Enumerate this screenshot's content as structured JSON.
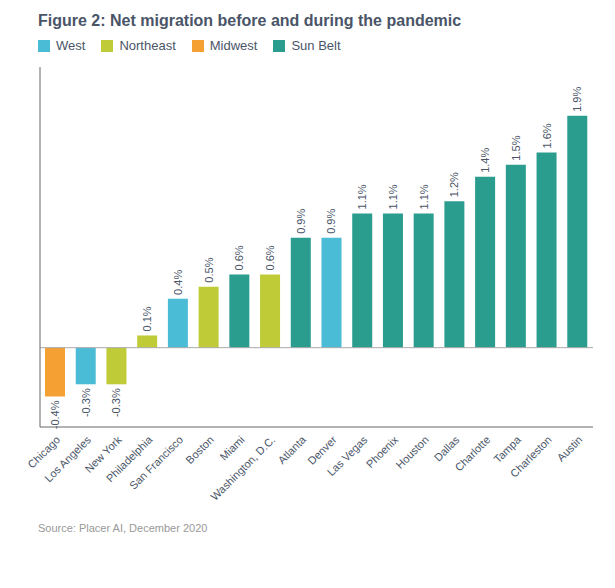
{
  "chart_data": {
    "type": "bar",
    "title": "Figure 2: Net migration before and during the pandemic",
    "categories": [
      "Chicago",
      "Los Angeles",
      "New York",
      "Philadelphia",
      "San Francisco",
      "Boston",
      "Miami",
      "Washington, D.C.",
      "Atlanta",
      "Denver",
      "Las Vegas",
      "Phoenix",
      "Houston",
      "Dallas",
      "Charlotte",
      "Tampa",
      "Charleston",
      "Austin"
    ],
    "series": [
      {
        "name": "West",
        "color": "#4BBCD6",
        "values": [
          null,
          -0.3,
          null,
          null,
          0.4,
          null,
          null,
          null,
          null,
          0.9,
          null,
          null,
          null,
          null,
          null,
          null,
          null,
          null
        ],
        "value_labels": [
          null,
          "-0.3%",
          null,
          null,
          "0.4%",
          null,
          null,
          null,
          null,
          "0.9%",
          null,
          null,
          null,
          null,
          null,
          null,
          null,
          null
        ]
      },
      {
        "name": "Northeast",
        "color": "#BFCC37",
        "values": [
          null,
          null,
          -0.3,
          0.1,
          null,
          0.5,
          null,
          0.6,
          null,
          null,
          null,
          null,
          null,
          null,
          null,
          null,
          null,
          null
        ],
        "value_labels": [
          null,
          null,
          "-0.3%",
          "0.1%",
          null,
          "0.5%",
          null,
          "0.6%",
          null,
          null,
          null,
          null,
          null,
          null,
          null,
          null,
          null,
          null
        ]
      },
      {
        "name": "Midwest",
        "color": "#F5A033",
        "values": [
          -0.4,
          null,
          null,
          null,
          null,
          null,
          null,
          null,
          null,
          null,
          null,
          null,
          null,
          null,
          null,
          null,
          null,
          null
        ],
        "value_labels": [
          "-0.4%",
          null,
          null,
          null,
          null,
          null,
          null,
          null,
          null,
          null,
          null,
          null,
          null,
          null,
          null,
          null,
          null,
          null
        ]
      },
      {
        "name": "Sun Belt",
        "color": "#2A9D8F",
        "values": [
          null,
          null,
          null,
          null,
          null,
          null,
          0.6,
          null,
          0.9,
          null,
          1.1,
          1.1,
          1.1,
          1.2,
          1.4,
          1.5,
          1.6,
          1.9
        ],
        "value_labels": [
          null,
          null,
          null,
          null,
          null,
          null,
          "0.6%",
          null,
          "0.9%",
          null,
          "1.1%",
          "1.1%",
          "1.1%",
          "1.2%",
          "1.4%",
          "1.5%",
          "1.6%",
          "1.9%"
        ]
      }
    ],
    "ylim": [
      -0.65,
      2.3
    ],
    "data_labels": true,
    "tick_labels": "x",
    "grid": false,
    "legend": "top-left",
    "annotations": [
      "Source: Placer AI, December 2020"
    ]
  }
}
